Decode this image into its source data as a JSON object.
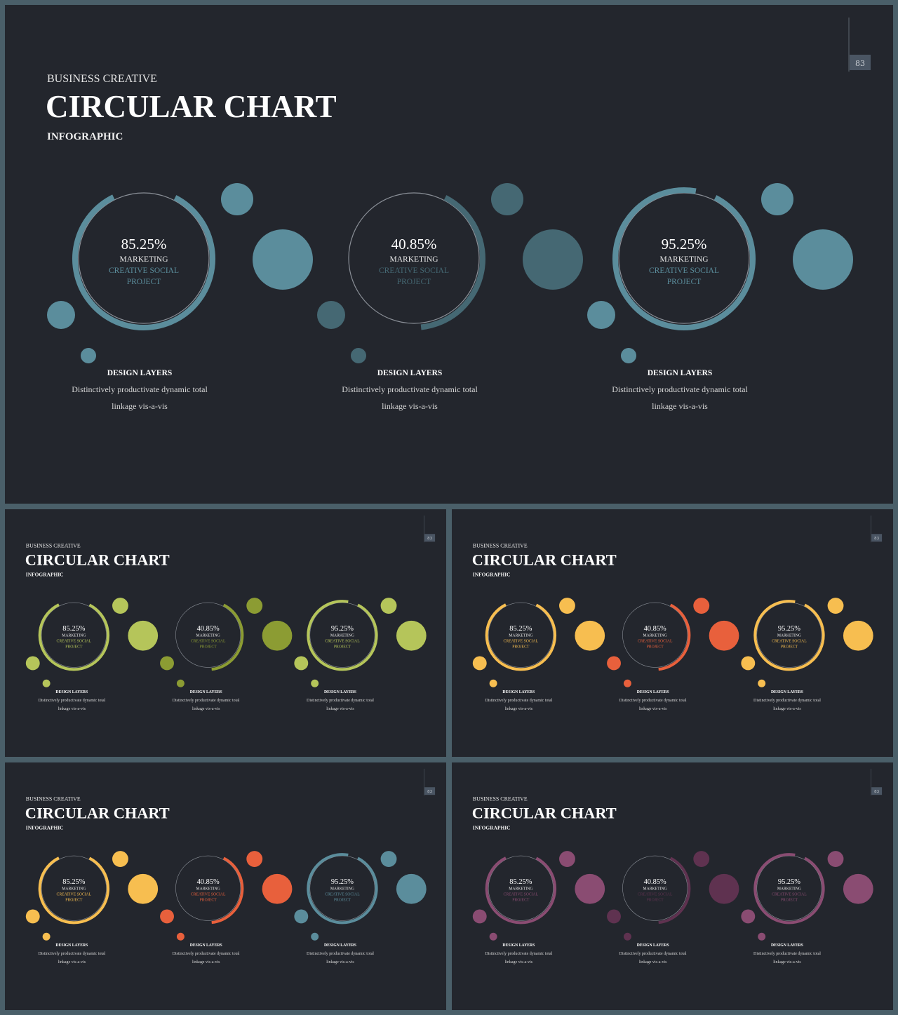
{
  "slide_text": {
    "kicker": "BUSINESS CREATIVE",
    "title": "CIRCULAR CHART",
    "subtitle": "INFOGRAPHIC",
    "page_number": "83"
  },
  "items": [
    {
      "percent": "85.25%",
      "value": 85.25,
      "label": "MARKETING",
      "sub1": "CREATIVE SOCIAL",
      "sub2": "PROJECT",
      "heading": "DESIGN LAYERS",
      "desc1": "Distinctively productivate  dynamic total",
      "desc2": "linkage vis-a-vis"
    },
    {
      "percent": "40.85%",
      "value": 40.85,
      "label": "MARKETING",
      "sub1": "CREATIVE SOCIAL",
      "sub2": "PROJECT",
      "heading": "DESIGN LAYERS",
      "desc1": "Distinctively productivate  dynamic total",
      "desc2": "linkage vis-a-vis"
    },
    {
      "percent": "95.25%",
      "value": 95.25,
      "label": "MARKETING",
      "sub1": "CREATIVE SOCIAL",
      "sub2": "PROJECT",
      "heading": "DESIGN LAYERS",
      "desc1": "Distinctively productivate  dynamic total",
      "desc2": "linkage vis-a-vis"
    }
  ],
  "variants": [
    {
      "name": "teal",
      "colors": [
        "#5b8d9c",
        "#456873",
        "#5b8d9c"
      ]
    },
    {
      "name": "green",
      "colors": [
        "#b5c55a",
        "#8c9c33",
        "#b5c55a"
      ]
    },
    {
      "name": "yellow-orange",
      "colors": [
        "#f7be50",
        "#e8603c",
        "#f7be50"
      ]
    },
    {
      "name": "yellow-orange-teal",
      "colors": [
        "#f7be50",
        "#e8603c",
        "#5b8d9c"
      ]
    },
    {
      "name": "plum",
      "colors": [
        "#8a4c72",
        "#5f3250",
        "#8a4c72"
      ]
    }
  ],
  "colors": {
    "background": "#23262d",
    "frame": "#4a5f69",
    "text": "#ffffff",
    "body_text": "#d6d6d6",
    "ring_outline": "#8a8f97"
  }
}
